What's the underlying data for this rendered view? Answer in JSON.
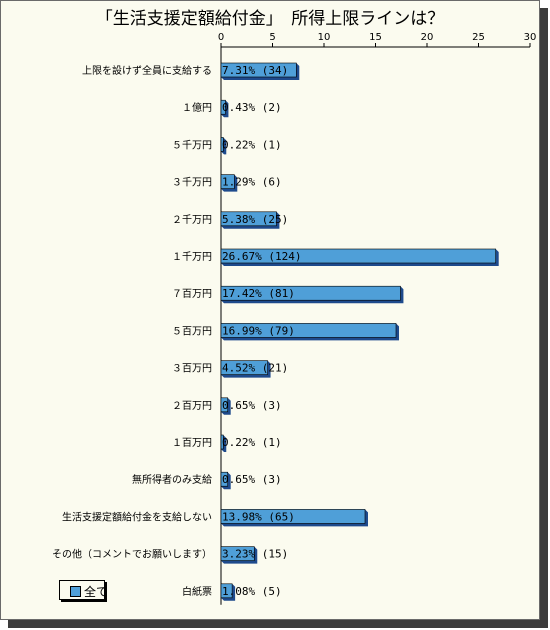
{
  "chart_data": {
    "type": "bar",
    "orientation": "horizontal",
    "title": "「生活支援定額給付金」　所得上限ラインは？",
    "categories": [
      "上限を設けず全員に支給する",
      "１億円",
      "５千万円",
      "３千万円",
      "２千万円",
      "１千万円",
      "７百万円",
      "５百万円",
      "３百万円",
      "２百万円",
      "１百万円",
      "無所得者のみ支給",
      "生活支援定額給付金を支給しない",
      "その他（コメントでお願いします）",
      "白紙票"
    ],
    "series": [
      {
        "name": "全て",
        "values": [
          7.31,
          0.43,
          0.22,
          1.29,
          5.38,
          26.67,
          17.42,
          16.99,
          4.52,
          0.65,
          0.22,
          0.65,
          13.98,
          3.23,
          1.08
        ],
        "labels": [
          "7.31% (34)",
          "0.43% (2)",
          "0.22% (1)",
          "1.29% (6)",
          "5.38% (25)",
          "26.67% (124)",
          "17.42% (81)",
          "16.99% (79)",
          "4.52% (21)",
          "0.65% (3)",
          "0.22% (1)",
          "0.65% (3)",
          "13.98% (65)",
          "3.23% (15)",
          "1.08% (5)"
        ]
      }
    ],
    "xlim": [
      0,
      30
    ],
    "xticks": [
      "0",
      "5",
      "10",
      "15",
      "20",
      "25",
      "30"
    ],
    "grid": false,
    "legend_position": "bottom-left",
    "colors": {
      "bar": "#4f9fd8",
      "bar_side": "#1e4a8c",
      "background": "#fbfbef"
    }
  },
  "legend": {
    "label": "全て"
  }
}
